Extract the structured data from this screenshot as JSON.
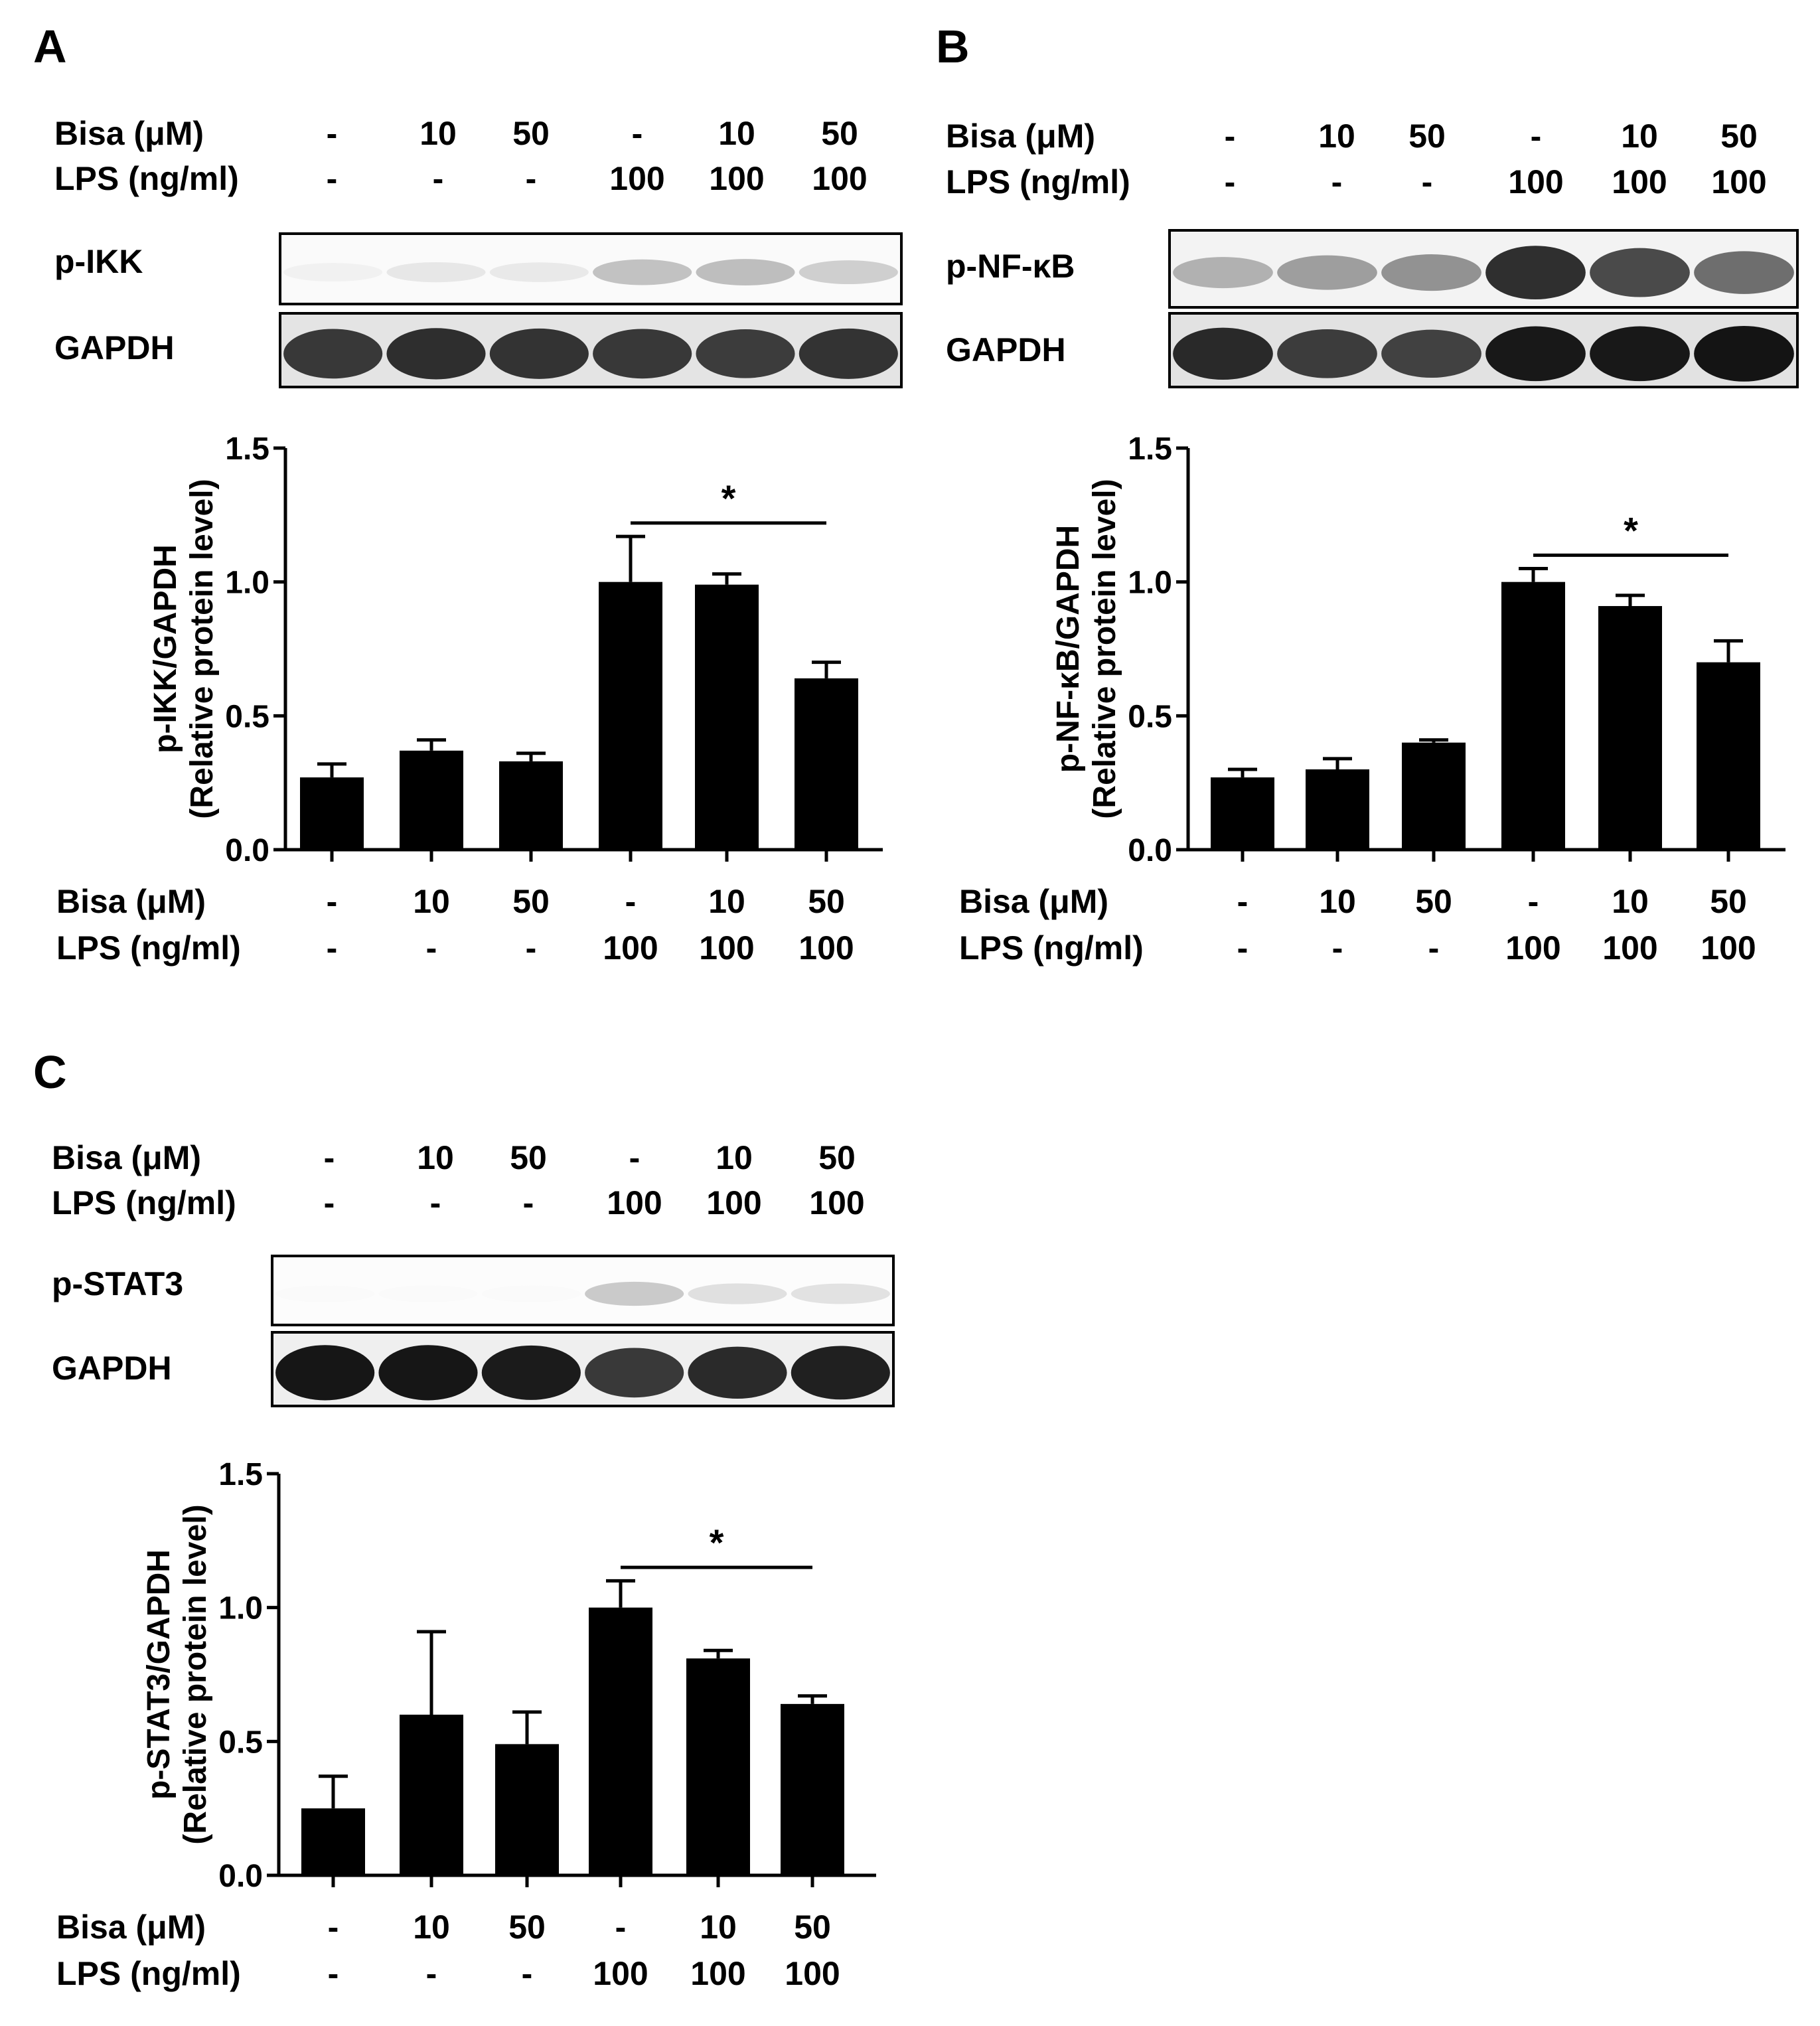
{
  "panels": [
    {
      "letter": "A",
      "bisa_label": "Bisa (μM)",
      "lps_label": "LPS (ng/ml)",
      "bisa": [
        "-",
        "10",
        "50",
        "-",
        "10",
        "50"
      ],
      "lps": [
        "-",
        "-",
        "-",
        "100",
        "100",
        "100"
      ],
      "blots": [
        {
          "label": "p-IKK",
          "band_intensity": [
            0.06,
            0.1,
            0.09,
            0.25,
            0.27,
            0.2
          ],
          "background": "#fafafa"
        },
        {
          "label": "GAPDH",
          "band_intensity": [
            0.82,
            0.86,
            0.84,
            0.82,
            0.8,
            0.84
          ],
          "background": "#e4e4e4"
        }
      ]
    },
    {
      "letter": "B",
      "bisa_label": "Bisa (μM)",
      "lps_label": "LPS (ng/ml)",
      "bisa": [
        "-",
        "10",
        "50",
        "-",
        "10",
        "50"
      ],
      "lps": [
        "-",
        "-",
        "-",
        "100",
        "100",
        "100"
      ],
      "blots": [
        {
          "label": "p-NF-κB",
          "band_intensity": [
            0.32,
            0.4,
            0.45,
            0.86,
            0.75,
            0.6
          ],
          "background": "#f3f3f3"
        },
        {
          "label": "GAPDH",
          "band_intensity": [
            0.88,
            0.8,
            0.78,
            0.95,
            0.95,
            0.97
          ],
          "background": "#e2e2e2"
        }
      ]
    },
    {
      "letter": "C",
      "bisa_label": "Bisa (μM)",
      "lps_label": "LPS (ng/ml)",
      "bisa": [
        "-",
        "10",
        "50",
        "-",
        "10",
        "50"
      ],
      "lps": [
        "-",
        "-",
        "-",
        "100",
        "100",
        "100"
      ],
      "blots": [
        {
          "label": "p-STAT3",
          "band_intensity": [
            0.02,
            0.02,
            0.02,
            0.22,
            0.13,
            0.12
          ],
          "background": "#fcfcfc"
        },
        {
          "label": "GAPDH",
          "band_intensity": [
            0.96,
            0.96,
            0.94,
            0.82,
            0.88,
            0.92
          ],
          "background": "#efefef"
        }
      ]
    }
  ],
  "chart_data": [
    {
      "type": "bar",
      "categories": [
        "1",
        "2",
        "3",
        "4",
        "5",
        "6"
      ],
      "values": [
        0.27,
        0.37,
        0.33,
        1.0,
        0.99,
        0.64
      ],
      "errors": [
        0.05,
        0.04,
        0.03,
        0.17,
        0.04,
        0.06
      ],
      "ylabel_1": "p-IKK/GAPDH",
      "ylabel_2": "(Relative protein level)",
      "ylim": [
        0,
        1.5
      ],
      "yticks": [
        "0.0",
        "0.5",
        "1.0",
        "1.5"
      ],
      "significance": {
        "from": 3,
        "to": 5,
        "label": "*"
      },
      "bar_color": "#000000",
      "x_labels": {
        "bisa_label": "Bisa (μM)",
        "lps_label": "LPS (ng/ml)",
        "bisa": [
          "-",
          "10",
          "50",
          "-",
          "10",
          "50"
        ],
        "lps": [
          "-",
          "-",
          "-",
          "100",
          "100",
          "100"
        ]
      }
    },
    {
      "type": "bar",
      "categories": [
        "1",
        "2",
        "3",
        "4",
        "5",
        "6"
      ],
      "values": [
        0.27,
        0.3,
        0.4,
        1.0,
        0.91,
        0.7
      ],
      "errors": [
        0.03,
        0.04,
        0.01,
        0.05,
        0.04,
        0.08
      ],
      "ylabel_1": "p-NF-κB/GAPDH",
      "ylabel_2": "(Relative protein level)",
      "ylim": [
        0,
        1.5
      ],
      "yticks": [
        "0.0",
        "0.5",
        "1.0",
        "1.5"
      ],
      "significance": {
        "from": 3,
        "to": 5,
        "label": "*"
      },
      "bar_color": "#000000",
      "x_labels": {
        "bisa_label": "Bisa (μM)",
        "lps_label": "LPS (ng/ml)",
        "bisa": [
          "-",
          "10",
          "50",
          "-",
          "10",
          "50"
        ],
        "lps": [
          "-",
          "-",
          "-",
          "100",
          "100",
          "100"
        ]
      }
    },
    {
      "type": "bar",
      "categories": [
        "1",
        "2",
        "3",
        "4",
        "5",
        "6"
      ],
      "values": [
        0.25,
        0.6,
        0.49,
        1.0,
        0.81,
        0.64
      ],
      "errors": [
        0.12,
        0.31,
        0.12,
        0.1,
        0.03,
        0.03
      ],
      "ylabel_1": "p-STAT3/GAPDH",
      "ylabel_2": "(Relative protein level)",
      "ylim": [
        0,
        1.5
      ],
      "yticks": [
        "0.0",
        "0.5",
        "1.0",
        "1.5"
      ],
      "significance": {
        "from": 3,
        "to": 5,
        "label": "*"
      },
      "bar_color": "#000000",
      "x_labels": {
        "bisa_label": "Bisa (μM)",
        "lps_label": "LPS (ng/ml)",
        "bisa": [
          "-",
          "10",
          "50",
          "-",
          "10",
          "50"
        ],
        "lps": [
          "-",
          "-",
          "-",
          "100",
          "100",
          "100"
        ]
      }
    }
  ]
}
